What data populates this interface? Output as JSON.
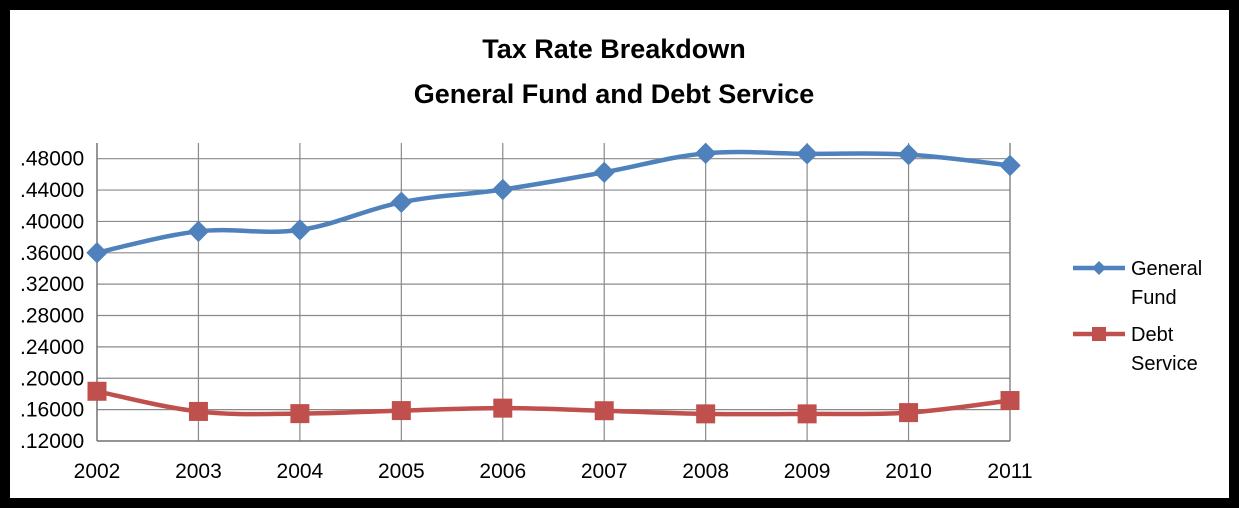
{
  "chart_data": {
    "type": "line",
    "title": "Tax Rate Breakdown",
    "subtitle": "General Fund and Debt Service",
    "xlabel": "",
    "ylabel": "",
    "categories": [
      "2002",
      "2003",
      "2004",
      "2005",
      "2006",
      "2007",
      "2008",
      "2009",
      "2010",
      "2011"
    ],
    "ylim": [
      0.12,
      0.5
    ],
    "y_ticks": [
      ".12000",
      ".16000",
      ".20000",
      ".24000",
      ".28000",
      ".32000",
      ".36000",
      ".40000",
      ".44000",
      ".48000"
    ],
    "grid": true,
    "legend_position": "right",
    "series": [
      {
        "name": "General Fund",
        "color": "#4F81BD",
        "marker": "diamond",
        "values": [
          0.3601,
          0.3873,
          0.3892,
          0.4244,
          0.4407,
          0.4626,
          0.4868,
          0.4862,
          0.4852,
          0.4713
        ]
      },
      {
        "name": "Debt Service",
        "color": "#C0504D",
        "marker": "square",
        "values": [
          0.1834,
          0.1577,
          0.1549,
          0.1588,
          0.1619,
          0.1586,
          0.1546,
          0.1546,
          0.1562,
          0.1716
        ]
      }
    ]
  }
}
